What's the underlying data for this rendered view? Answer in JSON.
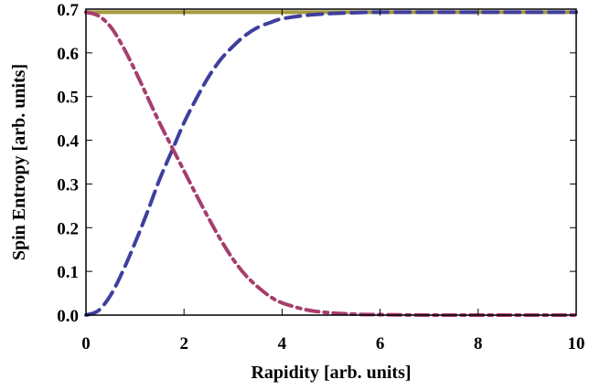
{
  "chart_data": {
    "type": "line",
    "title": "",
    "xlabel": "Rapidity [arb. units]",
    "ylabel": "Spin Entropy  [arb. units]",
    "xlim": [
      0,
      10
    ],
    "ylim": [
      0,
      0.7
    ],
    "grid": false,
    "x_ticks": [
      "0",
      "2",
      "4",
      "6",
      "8",
      "10"
    ],
    "y_ticks": [
      "0.0",
      "0.1",
      "0.2",
      "0.3",
      "0.4",
      "0.5",
      "0.6",
      "0.7"
    ],
    "x": [
      0,
      0.25,
      0.5,
      0.75,
      1,
      1.25,
      1.5,
      1.75,
      2,
      2.25,
      2.5,
      2.75,
      3,
      3.25,
      3.5,
      3.75,
      4,
      4.5,
      5,
      5.5,
      6,
      7,
      8,
      9,
      10
    ],
    "series": [
      {
        "style": "solid",
        "color": "#A39A3B",
        "values": [
          0.693,
          0.693,
          0.693,
          0.693,
          0.693,
          0.693,
          0.693,
          0.693,
          0.693,
          0.693,
          0.693,
          0.693,
          0.693,
          0.693,
          0.693,
          0.693,
          0.693,
          0.693,
          0.693,
          0.693,
          0.693,
          0.693,
          0.693,
          0.693,
          0.693
        ]
      },
      {
        "style": "dashed",
        "color": "#3F3F9E",
        "values": [
          0.0,
          0.01,
          0.045,
          0.1,
          0.165,
          0.235,
          0.31,
          0.375,
          0.44,
          0.495,
          0.545,
          0.585,
          0.615,
          0.64,
          0.658,
          0.669,
          0.678,
          0.686,
          0.69,
          0.692,
          0.693,
          0.693,
          0.693,
          0.693,
          0.693
        ]
      },
      {
        "style": "dash-dot",
        "color": "#A63F6E",
        "values": [
          0.693,
          0.685,
          0.66,
          0.615,
          0.56,
          0.5,
          0.44,
          0.385,
          0.33,
          0.275,
          0.222,
          0.172,
          0.128,
          0.092,
          0.065,
          0.043,
          0.028,
          0.012,
          0.005,
          0.002,
          0.001,
          0.0,
          0.0,
          0.0,
          0.0
        ]
      }
    ]
  }
}
